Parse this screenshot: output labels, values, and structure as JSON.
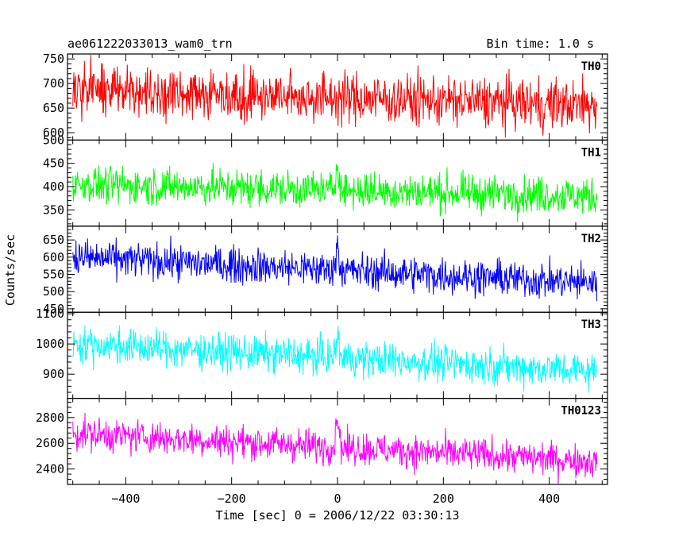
{
  "chart_data": {
    "type": "line",
    "title": "ae061222033013_wam0_trn",
    "bin_time": "Bin time: 1.0 s",
    "xlabel": "Time [sec] 0 = 2006/12/22 03:30:13",
    "ylabel": "Counts/sec",
    "xlim": [
      -510,
      510
    ],
    "x_ticks": [
      -400,
      -200,
      0,
      200,
      400
    ],
    "x_range": [
      -500,
      490
    ],
    "grid": false,
    "legend": "none",
    "panels": [
      {
        "name": "TH0",
        "color": "#ff0000",
        "ylim": [
          585,
          760
        ],
        "y_ticks": [
          600,
          650,
          700,
          750
        ],
        "baseline_start": 688,
        "baseline_end": 655,
        "noise": 26,
        "burst": 0,
        "burst_width": 4
      },
      {
        "name": "TH1",
        "color": "#00ff00",
        "ylim": [
          315,
          500
        ],
        "y_ticks": [
          350,
          400,
          450,
          500
        ],
        "baseline_start": 405,
        "baseline_end": 380,
        "noise": 20,
        "burst": 65,
        "burst_width": 4
      },
      {
        "name": "TH2",
        "color": "#0000ff",
        "ylim": [
          440,
          690
        ],
        "y_ticks": [
          450,
          500,
          550,
          600,
          650
        ],
        "baseline_start": 600,
        "baseline_end": 525,
        "noise": 26,
        "burst": 75,
        "burst_width": 4
      },
      {
        "name": "TH3",
        "color": "#00ffff",
        "ylim": [
          820,
          1105
        ],
        "y_ticks": [
          900,
          1000,
          1100
        ],
        "baseline_start": 1000,
        "baseline_end": 910,
        "noise": 30,
        "burst": 70,
        "burst_width": 4
      },
      {
        "name": "TH0123",
        "color": "#ff00ff",
        "ylim": [
          2280,
          2950
        ],
        "y_ticks": [
          2400,
          2600,
          2800
        ],
        "baseline_start": 2680,
        "baseline_end": 2460,
        "noise": 65,
        "burst": 260,
        "burst_width": 4
      }
    ]
  }
}
